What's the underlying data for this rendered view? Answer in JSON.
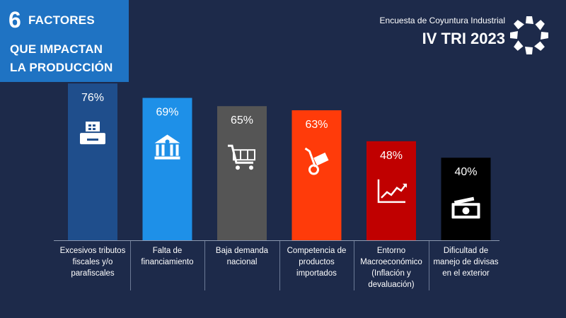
{
  "header": {
    "number": "6",
    "line1": "FACTORES",
    "line2": "QUE IMPACTAN",
    "line3": "LA PRODUCCIÓN",
    "survey": "Encuesta de Coyuntura Industrial",
    "period": "IV TRI 2023"
  },
  "logo_icon": "ring-logo-icon",
  "chart_data": {
    "type": "bar",
    "categories": [
      "Excesivos tributos fiscales y/o parafiscales",
      "Falta de financiamiento",
      "Baja demanda nacional",
      "Competencia de productos importados",
      "Entorno Macroeconómico (Inflación y devaluación)",
      "Dificultad de manejo de divisas en el exterior"
    ],
    "category_lines": [
      [
        "Excesivos tributos",
        "fiscales y/o",
        "parafiscales"
      ],
      [
        "Falta de",
        "financiamiento"
      ],
      [
        "Baja demanda",
        "nacional"
      ],
      [
        "Competencia de",
        "productos",
        "importados"
      ],
      [
        "Entorno",
        "Macroeconómico",
        "(Inflación y",
        "devaluación)"
      ],
      [
        "Dificultad de",
        "manejo de divisas",
        "en el exterior"
      ]
    ],
    "values": [
      76,
      69,
      65,
      63,
      48,
      40
    ],
    "value_labels": [
      "76%",
      "69%",
      "65%",
      "63%",
      "48%",
      "40%"
    ],
    "colors": [
      "#1f4e8c",
      "#1e90e8",
      "#555555",
      "#ff3b0a",
      "#c00000",
      "#000000"
    ],
    "icons": [
      "cash-register-icon",
      "bank-icon",
      "shopping-cart-icon",
      "hand-truck-icon",
      "trend-chart-icon",
      "banknote-icon"
    ],
    "ylim": [
      0,
      80
    ],
    "unit": "%"
  }
}
